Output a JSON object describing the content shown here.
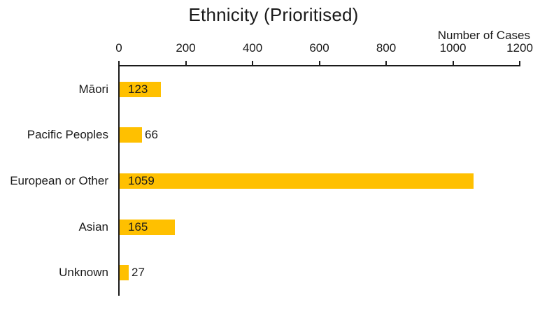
{
  "title": "Ethnicity (Prioritised)",
  "colors": {
    "bar": "#FFC000",
    "axis": "#1a1a1a",
    "text": "#1a1a1a",
    "background": "#ffffff"
  },
  "chart_data": {
    "type": "bar",
    "orientation": "horizontal",
    "title": "Ethnicity (Prioritised)",
    "xlabel": "Number of Cases",
    "ylabel": "",
    "categories": [
      "Māori",
      "Pacific Peoples",
      "European or Other",
      "Asian",
      "Unknown"
    ],
    "values": [
      123,
      66,
      1059,
      165,
      27
    ],
    "xlim": [
      0,
      1200
    ],
    "xticks": [
      0,
      200,
      400,
      600,
      800,
      1000,
      1200
    ],
    "grid": false,
    "legend": false,
    "data_labels": true,
    "data_label_position": "inside-base"
  }
}
